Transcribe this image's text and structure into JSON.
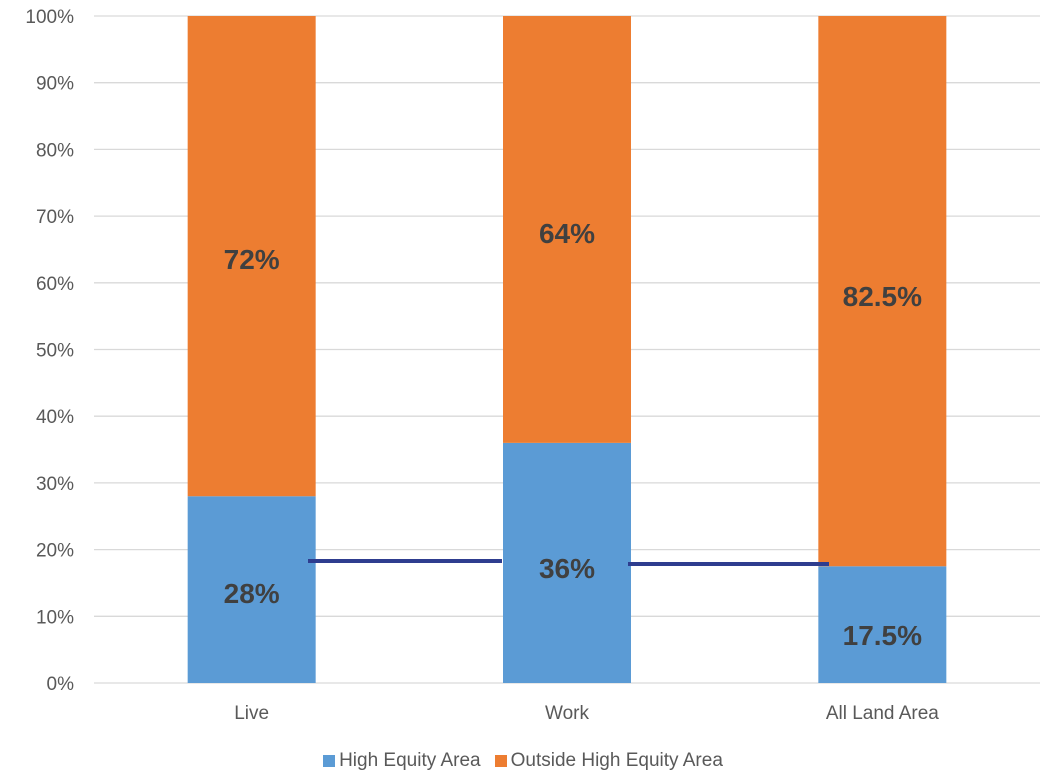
{
  "chart_data": {
    "type": "bar",
    "stacked": true,
    "percent_stacked": true,
    "categories": [
      "Live",
      "Work",
      "All Land Area"
    ],
    "series": [
      {
        "name": "High Equity Area",
        "values": [
          28,
          36,
          17.5
        ],
        "labels": [
          "28%",
          "36%",
          "17.5%"
        ],
        "color": "#5b9bd5"
      },
      {
        "name": "Outside High Equity Area",
        "values": [
          72,
          64,
          82.5
        ],
        "labels": [
          "72%",
          "64%",
          "82.5%"
        ],
        "color": "#ed7d31"
      }
    ],
    "connector_color": "#2e3d8f",
    "ylim": [
      0,
      100
    ],
    "yticks": [
      "0%",
      "10%",
      "20%",
      "30%",
      "40%",
      "50%",
      "60%",
      "70%",
      "80%",
      "90%",
      "100%"
    ],
    "grid": true,
    "legend": "bottom"
  }
}
